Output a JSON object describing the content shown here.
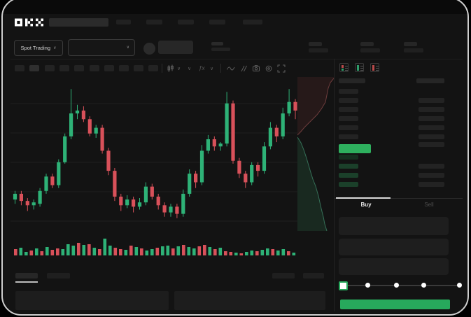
{
  "app": {
    "logo_text": "OKX"
  },
  "market_row": {
    "market_selector_label": "Spot Trading"
  },
  "chart_toolbar": {
    "timeframe_slots": 10,
    "active_slot": 1,
    "icons": [
      "candle-type-icon",
      "chevron-down-icon",
      "indicators-fx-icon",
      "line-style-icon",
      "compare-icon",
      "screenshot-icon",
      "settings-icon",
      "fullscreen-icon"
    ]
  },
  "order_book": {
    "view_toggle_icons": [
      "book-combined-icon",
      "book-bids-icon",
      "book-asks-icon"
    ],
    "price_row_color": "#2eb05e",
    "bid_row_color": "#1b402a",
    "first_bid_row_color": "#15301f",
    "ask_rows": 6,
    "bid_rows": 4
  },
  "order_panel": {
    "tabs": [
      {
        "label": "Buy",
        "active": true
      },
      {
        "label": "Sell",
        "active": false
      }
    ],
    "fields": 3,
    "slider": {
      "stops": 5,
      "active_stop": 0
    },
    "submit_color": "#27a95c"
  },
  "colors": {
    "up": "#2eb277",
    "down": "#d8515a",
    "accent_green": "#27a95c",
    "frame": "#cfcfcf"
  },
  "chart_data": [
    {
      "type": "candlestick",
      "name": "price",
      "up_color": "#2eb277",
      "down_color": "#d8515a",
      "gridlines": 5,
      "axis_labels_visible": false,
      "ohlc": [
        [
          18,
          24,
          15,
          22
        ],
        [
          22,
          24,
          14,
          17
        ],
        [
          17,
          19,
          10,
          14
        ],
        [
          14,
          18,
          11,
          16
        ],
        [
          15,
          26,
          13,
          24
        ],
        [
          24,
          36,
          22,
          34
        ],
        [
          34,
          36,
          26,
          28
        ],
        [
          28,
          46,
          26,
          44
        ],
        [
          44,
          64,
          43,
          62
        ],
        [
          62,
          95,
          60,
          78
        ],
        [
          78,
          84,
          74,
          80
        ],
        [
          80,
          83,
          72,
          74
        ],
        [
          74,
          76,
          62,
          64
        ],
        [
          64,
          70,
          61,
          68
        ],
        [
          68,
          70,
          50,
          52
        ],
        [
          52,
          54,
          35,
          38
        ],
        [
          38,
          40,
          17,
          20
        ],
        [
          20,
          22,
          10,
          14
        ],
        [
          14,
          21,
          12,
          18
        ],
        [
          18,
          20,
          9,
          13
        ],
        [
          13,
          19,
          11,
          16
        ],
        [
          16,
          30,
          14,
          27
        ],
        [
          27,
          29,
          18,
          20
        ],
        [
          20,
          22,
          11,
          14
        ],
        [
          14,
          16,
          6,
          9
        ],
        [
          9,
          15,
          6,
          13
        ],
        [
          13,
          15,
          5,
          8
        ],
        [
          8,
          25,
          6,
          22
        ],
        [
          22,
          39,
          20,
          36
        ],
        [
          36,
          38,
          26,
          30
        ],
        [
          30,
          56,
          28,
          52
        ],
        [
          52,
          63,
          50,
          60
        ],
        [
          60,
          62,
          52,
          55
        ],
        [
          55,
          58,
          52,
          57
        ],
        [
          57,
          93,
          55,
          85
        ],
        [
          85,
          87,
          43,
          45
        ],
        [
          45,
          47,
          33,
          36
        ],
        [
          36,
          38,
          26,
          30
        ],
        [
          30,
          44,
          28,
          42
        ],
        [
          42,
          44,
          34,
          38
        ],
        [
          38,
          58,
          36,
          55
        ],
        [
          55,
          72,
          53,
          68
        ],
        [
          68,
          70,
          58,
          62
        ],
        [
          62,
          82,
          60,
          78
        ],
        [
          78,
          95,
          76,
          86
        ],
        [
          86,
          88,
          74,
          80
        ],
        [
          80,
          93,
          78,
          88
        ]
      ]
    },
    {
      "type": "bar",
      "name": "volume",
      "values": [
        9,
        11,
        5,
        7,
        10,
        6,
        12,
        8,
        10,
        9,
        16,
        14,
        18,
        15,
        16,
        11,
        9,
        24,
        14,
        11,
        9,
        8,
        14,
        12,
        10,
        7,
        9,
        11,
        13,
        14,
        10,
        13,
        15,
        12,
        10,
        13,
        15,
        12,
        9,
        11,
        6,
        5,
        4,
        3,
        5,
        7,
        6,
        8,
        10,
        9,
        7,
        9,
        6,
        4
      ],
      "colors": [
        "r",
        "g",
        "g",
        "r",
        "g",
        "r",
        "g",
        "r",
        "r",
        "g",
        "g",
        "g",
        "r",
        "g",
        "r",
        "g",
        "r",
        "g",
        "g",
        "r",
        "r",
        "g",
        "r",
        "g",
        "r",
        "g",
        "g",
        "r",
        "g",
        "g",
        "r",
        "g",
        "r",
        "g",
        "g",
        "r",
        "r",
        "g",
        "r",
        "g",
        "r",
        "r",
        "g",
        "r",
        "g",
        "g",
        "r",
        "g",
        "g",
        "r",
        "g",
        "g",
        "r",
        "g"
      ]
    },
    {
      "type": "area",
      "name": "depth",
      "ask_fill": "rgba(150,60,60,0.15)",
      "ask_line": "rgba(190,100,100,0.5)",
      "bid_fill": "rgba(60,170,110,0.15)",
      "bid_line": "rgba(80,180,140,0.55)",
      "asks_curve": [
        [
          52,
          2
        ],
        [
          47,
          8
        ],
        [
          44,
          16
        ],
        [
          42,
          26
        ],
        [
          40,
          36
        ],
        [
          34,
          46
        ],
        [
          28,
          54
        ],
        [
          22,
          60
        ],
        [
          16,
          66
        ],
        [
          10,
          72
        ],
        [
          5,
          78
        ],
        [
          0,
          83
        ]
      ],
      "bids_curve": [
        [
          0,
          86
        ],
        [
          5,
          94
        ],
        [
          9,
          104
        ],
        [
          13,
          116
        ],
        [
          18,
          133
        ],
        [
          22,
          146
        ],
        [
          26,
          156
        ],
        [
          30,
          170
        ],
        [
          34,
          188
        ],
        [
          37,
          200
        ],
        [
          39,
          210
        ],
        [
          42,
          220
        ]
      ]
    }
  ]
}
